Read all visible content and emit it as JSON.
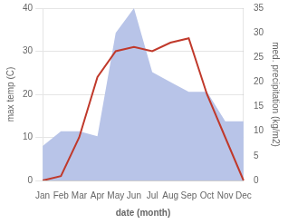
{
  "chart_data": {
    "type": "line",
    "categories": [
      "Jan",
      "Feb",
      "Mar",
      "Apr",
      "May",
      "Jun",
      "Jul",
      "Aug",
      "Sep",
      "Oct",
      "Nov",
      "Dec"
    ],
    "series": [
      {
        "type": "area",
        "color": "#b8c4e8",
        "axis": "y2",
        "values": [
          7,
          10,
          10,
          9,
          30,
          35,
          22,
          20,
          18,
          18,
          12,
          12
        ]
      },
      {
        "type": "line",
        "color": "#c0392b",
        "values": [
          0,
          1,
          10,
          24,
          30,
          31,
          30,
          32,
          33,
          20,
          10,
          0
        ]
      }
    ],
    "xlabel": "date (month)",
    "ylabel": "max temp (C)",
    "y2label": "med. precipitation (kg/m2)",
    "ylim": [
      0,
      40
    ],
    "yticks": [
      0,
      10,
      20,
      30,
      40
    ],
    "y2lim": [
      0,
      35
    ],
    "y2ticks": [
      0,
      5,
      10,
      15,
      20,
      25,
      30,
      35
    ],
    "grid": true
  }
}
